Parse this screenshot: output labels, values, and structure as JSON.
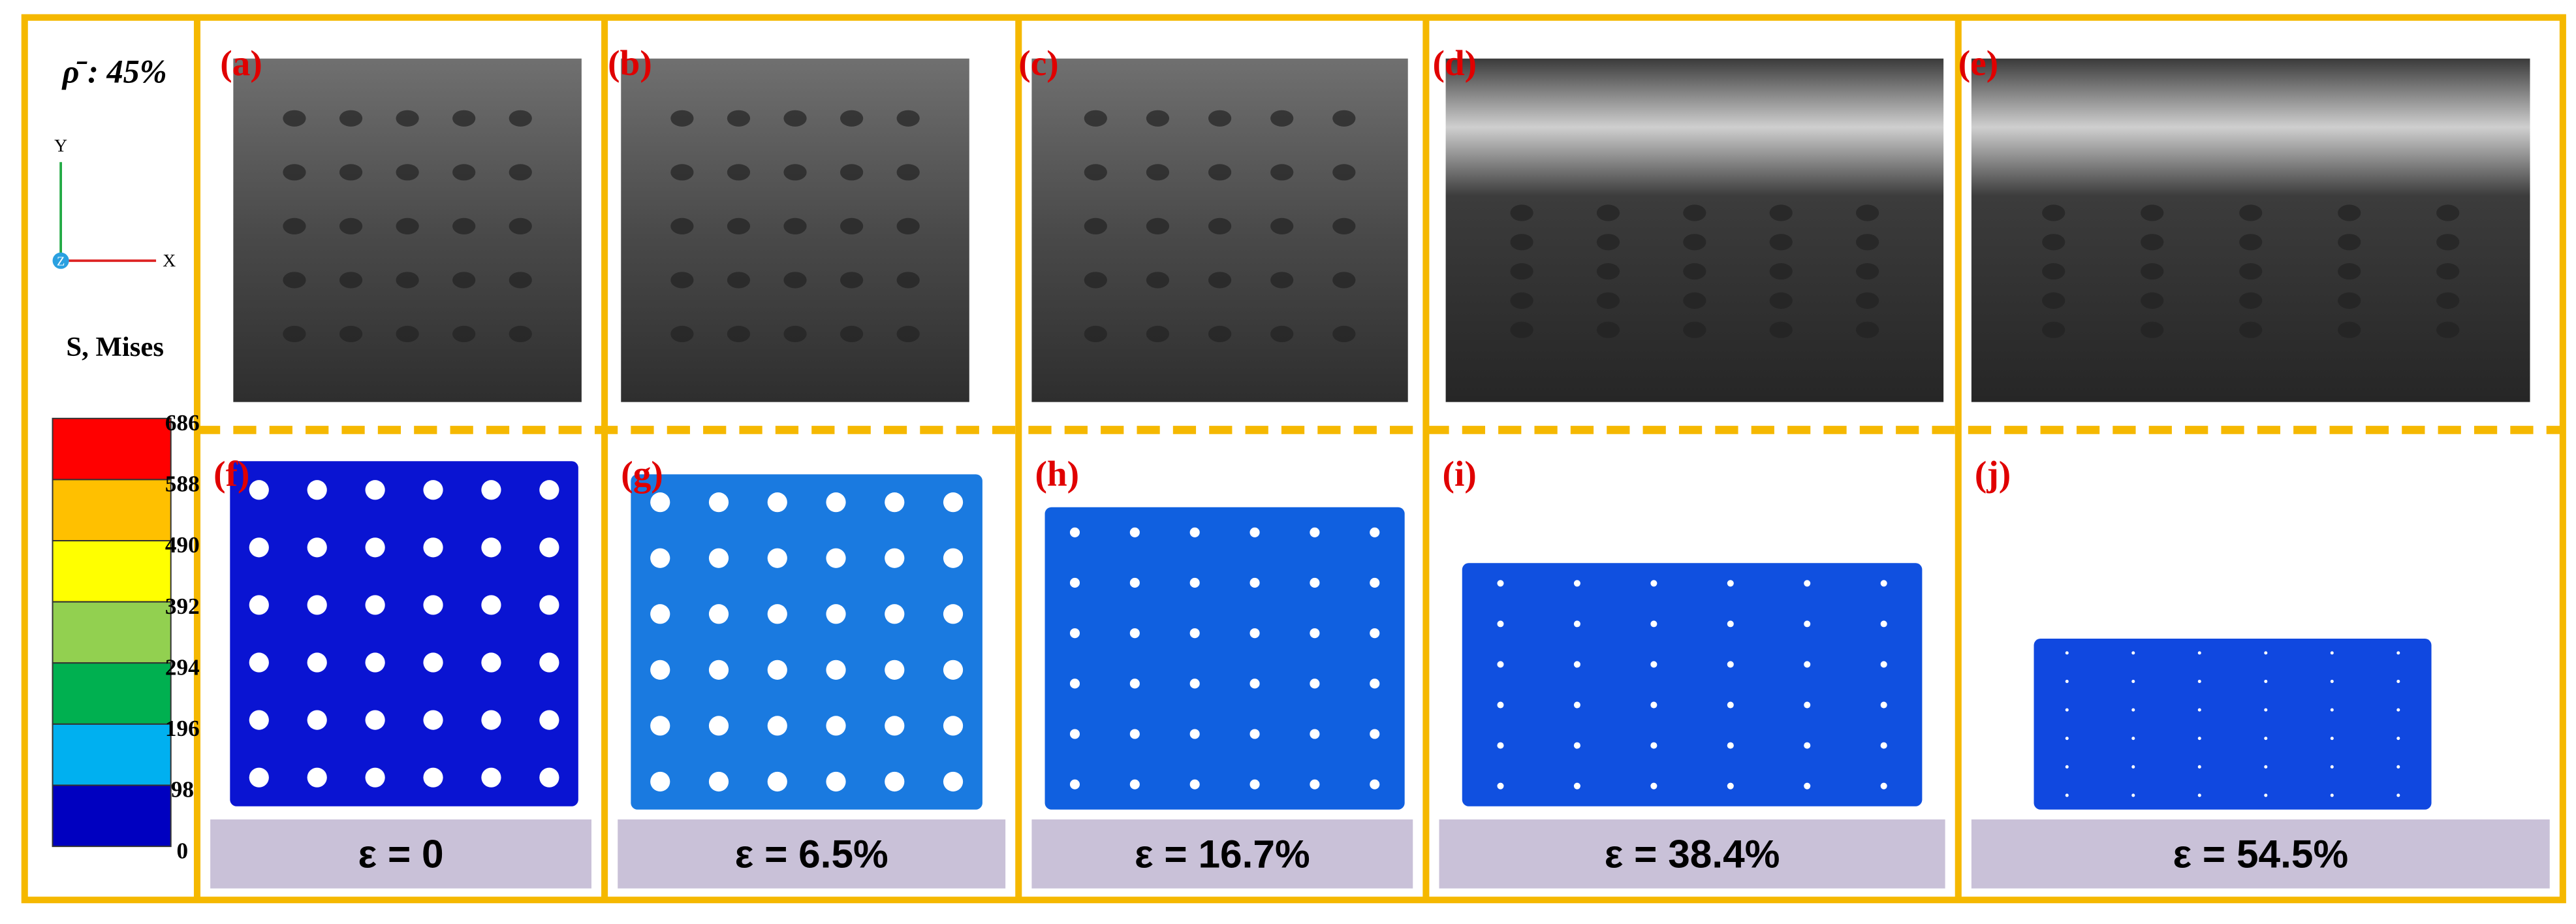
{
  "legend": {
    "density": "ρ̄ : 45%",
    "axes": {
      "y": "Y",
      "z": "Z",
      "x": "X"
    },
    "stress_title": "S, Mises",
    "colors": [
      "#ff0000",
      "#ffc000",
      "#ffff00",
      "#92d050",
      "#00b050",
      "#00b0f0",
      "#0000c0"
    ],
    "ticks": [
      "686",
      "588",
      "490",
      "392",
      "294",
      "196",
      "98",
      "0"
    ]
  },
  "panels": [
    {
      "photo_label": "(a)",
      "sim_label": "(f)",
      "strain": "ε =  0"
    },
    {
      "photo_label": "(b)",
      "sim_label": "(g)",
      "strain": "ε =  6.5%"
    },
    {
      "photo_label": "(c)",
      "sim_label": "(h)",
      "strain": "ε =  16.7%"
    },
    {
      "photo_label": "(d)",
      "sim_label": "(i)",
      "strain": "ε =  38.4%"
    },
    {
      "photo_label": "(e)",
      "sim_label": "(j)",
      "strain": "ε =  54.5%"
    }
  ]
}
